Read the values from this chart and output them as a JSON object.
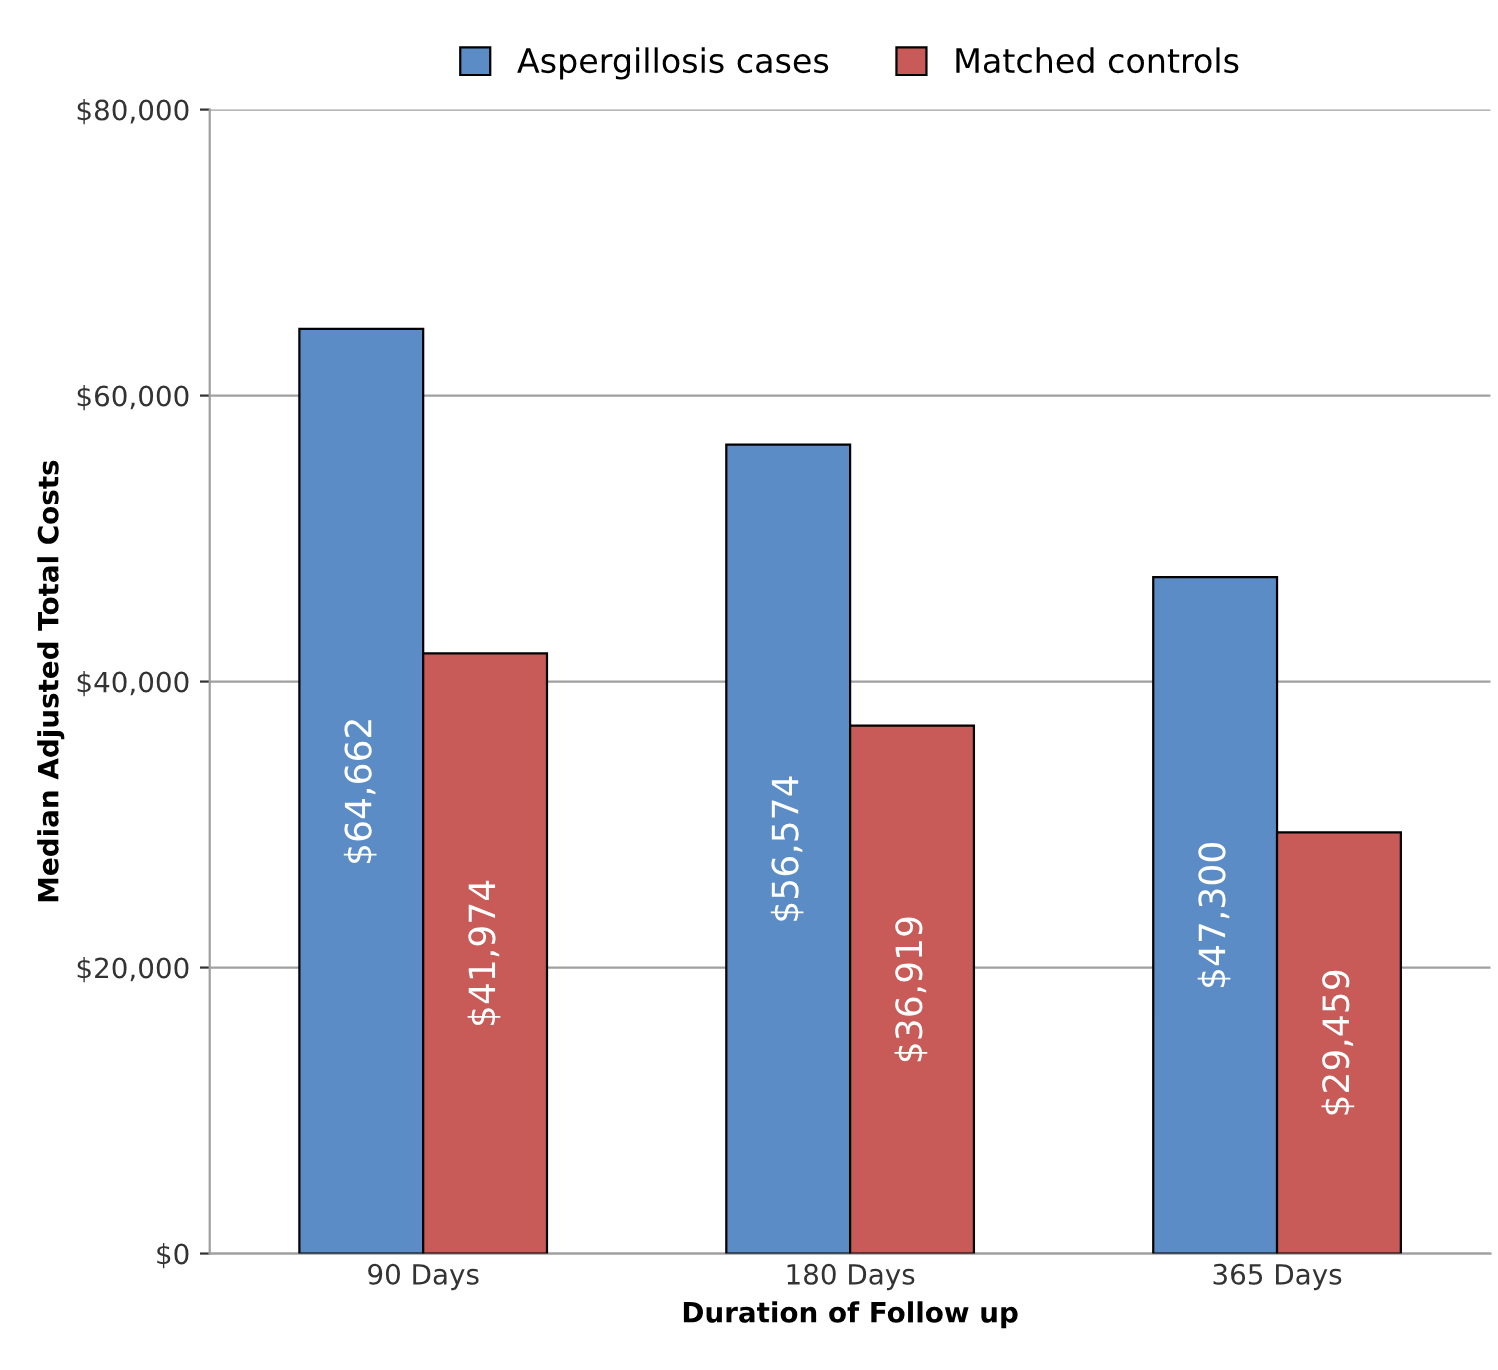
{
  "chart_data": {
    "type": "bar",
    "xlabel": "Duration of Follow up",
    "ylabel": "Median Adjusted Total Costs",
    "categories": [
      "90 Days",
      "180 Days",
      "365 Days"
    ],
    "series": [
      {
        "name": "Aspergillosis cases",
        "color": "#5b8cc6",
        "values": [
          64662,
          56574,
          47300
        ],
        "value_labels": [
          "$64,662",
          "$56,574",
          "$47,300"
        ]
      },
      {
        "name": "Matched controls",
        "color": "#c85a58",
        "values": [
          41974,
          36919,
          29459
        ],
        "value_labels": [
          "$41,974",
          "$36,919",
          "$29,459"
        ]
      }
    ],
    "ylim": [
      0,
      80000
    ],
    "yticks": [
      {
        "value": 0,
        "label": "$0"
      },
      {
        "value": 20000,
        "label": "$20,000"
      },
      {
        "value": 40000,
        "label": "$40,000"
      },
      {
        "value": 60000,
        "label": "$60,000"
      },
      {
        "value": 80000,
        "label": "$80,000"
      }
    ],
    "grid": "y",
    "legend": "top"
  }
}
